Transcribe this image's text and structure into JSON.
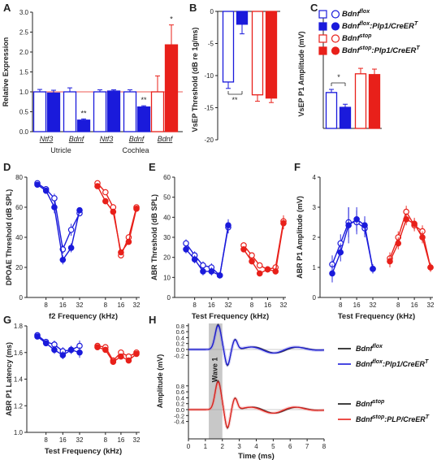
{
  "colors": {
    "blue": "#1a1adb",
    "red": "#e8201a",
    "gray": "#c8c8c8",
    "black": "#111111",
    "refline": "#e8201a"
  },
  "legend": {
    "items": [
      {
        "label": "Bdnf",
        "sup": "flox",
        "suffix": "",
        "color": "#1a1adb",
        "filled": false
      },
      {
        "label": "Bdnf",
        "sup": "flox",
        "suffix": ":Plp1/CreER",
        "suffix_sup": "T",
        "color": "#1a1adb",
        "filled": true
      },
      {
        "label": "Bdnf",
        "sup": "stop",
        "suffix": "",
        "color": "#e8201a",
        "filled": false
      },
      {
        "label": "Bdnf",
        "sup": "stop",
        "suffix": ":Plp1/CreER",
        "suffix_sup": "T",
        "color": "#e8201a",
        "filled": true
      }
    ]
  },
  "legend_h": {
    "items": [
      {
        "label": "Bdnf",
        "sup": "flox",
        "suffix": "",
        "color": "#111111"
      },
      {
        "label": "Bdnf",
        "sup": "flox",
        "suffix": ":Plp1/CreER",
        "suffix_sup": "T",
        "color": "#1a1adb"
      },
      {
        "label": "Bdnf",
        "sup": "stop",
        "suffix": "",
        "color": "#111111"
      },
      {
        "label": "Bdnf",
        "sup": "stop",
        "suffix": ":PLP/CreER",
        "suffix_sup": "T",
        "color": "#e8201a"
      }
    ]
  },
  "chart_data": [
    {
      "panel": "A",
      "type": "bar",
      "ylabel": "Relative Expression",
      "ylim": [
        0,
        3.0
      ],
      "yticks": [
        "0.0",
        "0.5",
        "1.0",
        "1.5",
        "2.0",
        "2.5",
        "3.0"
      ],
      "bars": [
        {
          "group": "Ntf3",
          "region": "Utricle",
          "color": "blue",
          "filled": false,
          "value": 1.0,
          "err": 0.06
        },
        {
          "group": "Ntf3",
          "region": "Utricle",
          "color": "blue",
          "filled": true,
          "value": 0.97,
          "err": 0.07
        },
        {
          "group": "Bdnf",
          "region": "Utricle",
          "color": "blue",
          "filled": false,
          "value": 1.0,
          "err": 0.1
        },
        {
          "group": "Bdnf",
          "region": "Utricle",
          "color": "blue",
          "filled": true,
          "value": 0.29,
          "err": 0.03,
          "sig": "**"
        },
        {
          "group": "Ntf3",
          "region": "Cochlea",
          "color": "blue",
          "filled": false,
          "value": 1.0,
          "err": 0.05
        },
        {
          "group": "Ntf3",
          "region": "Cochlea",
          "color": "blue",
          "filled": true,
          "value": 1.02,
          "err": 0.03
        },
        {
          "group": "Bdnf",
          "region": "Cochlea",
          "color": "blue",
          "filled": false,
          "value": 1.0,
          "err": 0.05
        },
        {
          "group": "Bdnf",
          "region": "Cochlea",
          "color": "blue",
          "filled": true,
          "value": 0.62,
          "err": 0.03,
          "sig": "**"
        },
        {
          "group": "Bdnf",
          "region": "Cochlea",
          "color": "red",
          "filled": false,
          "value": 1.0,
          "err": 0.4
        },
        {
          "group": "Bdnf",
          "region": "Cochlea",
          "color": "red",
          "filled": true,
          "value": 2.18,
          "err": 0.5,
          "sig": "*"
        }
      ],
      "group_labels": [
        "Ntf3",
        "Bdnf",
        "Ntf3",
        "Bdnf",
        "Bdnf"
      ],
      "region_labels": [
        "Utricle",
        "Cochlea"
      ],
      "refline": 1.0
    },
    {
      "panel": "B",
      "type": "bar",
      "ylabel": "VsEP Threshold (dB re 1g/ms)",
      "ylim": [
        -20,
        0
      ],
      "yticks": [
        "0",
        "-5",
        "-10",
        "-15",
        "-20"
      ],
      "bars": [
        {
          "color": "blue",
          "filled": false,
          "value": -11.0,
          "err": 1.0
        },
        {
          "color": "blue",
          "filled": true,
          "value": -2.0,
          "err": 1.5
        },
        {
          "color": "red",
          "filled": false,
          "value": -13.0,
          "err": 1.0
        },
        {
          "color": "red",
          "filled": true,
          "value": -13.5,
          "err": 0.7
        }
      ],
      "sig": "**"
    },
    {
      "panel": "C",
      "type": "bar",
      "ylabel": "VsEP P1 Amplitude (mV)",
      "ylim": [
        0,
        1.5
      ],
      "bars": [
        {
          "color": "blue",
          "filled": false,
          "value": 0.46,
          "err": 0.04
        },
        {
          "color": "blue",
          "filled": true,
          "value": 0.27,
          "err": 0.04
        },
        {
          "color": "red",
          "filled": false,
          "value": 0.7,
          "err": 0.07
        },
        {
          "color": "red",
          "filled": true,
          "value": 0.69,
          "err": 0.07
        }
      ],
      "sig": "*"
    },
    {
      "panel": "D",
      "type": "line",
      "ylabel": "DPOAE Threshold (dB SPL)",
      "xlabel": "f2 Frequency (kHz)",
      "ylim": [
        0,
        80
      ],
      "yticks": [
        "0",
        "20",
        "40",
        "60",
        "80"
      ],
      "xticks": [
        "8",
        "16",
        "32"
      ],
      "series": [
        {
          "color": "blue",
          "filled": false,
          "x": [
            5.6,
            8,
            11.3,
            16,
            22.6,
            32
          ],
          "y": [
            76,
            72,
            66,
            32,
            45,
            56
          ],
          "err": [
            1.5,
            2,
            3,
            3,
            4,
            2
          ]
        },
        {
          "color": "blue",
          "filled": true,
          "x": [
            5.6,
            8,
            11.3,
            16,
            22.6,
            32
          ],
          "y": [
            75,
            71,
            60,
            25,
            33,
            58
          ],
          "err": [
            1.5,
            2,
            4,
            3,
            3,
            2
          ]
        },
        {
          "color": "red",
          "filled": false,
          "x": [
            5.6,
            8,
            11.3,
            16,
            22.6,
            32
          ],
          "y": [
            76,
            70,
            60,
            28,
            40,
            60
          ],
          "err": [
            1.5,
            2,
            2,
            2,
            2,
            1.5
          ]
        },
        {
          "color": "red",
          "filled": true,
          "x": [
            5.6,
            8,
            11.3,
            16,
            22.6,
            32
          ],
          "y": [
            74,
            64,
            57,
            30,
            37,
            59
          ],
          "err": [
            1.5,
            2,
            2,
            2,
            2,
            1.5
          ]
        }
      ]
    },
    {
      "panel": "E",
      "type": "line",
      "ylabel": "ABR Threshold (dB SPL)",
      "xlabel": "Test Frequency (kHz)",
      "ylim": [
        0,
        60
      ],
      "yticks": [
        "0",
        "10",
        "20",
        "30",
        "40",
        "50",
        "60"
      ],
      "xticks": [
        "8",
        "16",
        "32"
      ],
      "series": [
        {
          "color": "blue",
          "filled": false,
          "x": [
            5.6,
            8,
            11.3,
            16,
            22.6,
            32
          ],
          "y": [
            27,
            21,
            16,
            15,
            11,
            35
          ],
          "err": [
            2,
            2,
            2,
            2,
            1.5,
            3
          ]
        },
        {
          "color": "blue",
          "filled": true,
          "x": [
            5.6,
            8,
            11.3,
            16,
            22.6,
            32
          ],
          "y": [
            24,
            19,
            13,
            13,
            11,
            36
          ],
          "err": [
            2,
            2,
            2,
            2,
            1.5,
            3
          ]
        },
        {
          "color": "red",
          "filled": false,
          "x": [
            5.6,
            8,
            11.3,
            16,
            22.6,
            32
          ],
          "y": [
            26,
            21,
            16,
            14,
            15,
            38
          ],
          "err": [
            1.5,
            1.5,
            1.5,
            1.5,
            1.5,
            3
          ]
        },
        {
          "color": "red",
          "filled": true,
          "x": [
            5.6,
            8,
            11.3,
            16,
            22.6,
            32
          ],
          "y": [
            24,
            18,
            12,
            14,
            13,
            37
          ],
          "err": [
            1.5,
            1.5,
            1.5,
            1.5,
            1.5,
            3
          ]
        }
      ]
    },
    {
      "panel": "F",
      "type": "line",
      "ylabel": "ABR P1 Amplitude (mV)",
      "xlabel": "Test Frequency (kHz)",
      "ylim": [
        0,
        4
      ],
      "yticks": [
        "0",
        "1",
        "2",
        "3",
        "4"
      ],
      "xticks": [
        "8",
        "16",
        "32"
      ],
      "series": [
        {
          "color": "blue",
          "filled": false,
          "x": [
            5.6,
            8,
            11.3,
            16,
            22.6,
            32
          ],
          "y": [
            1.1,
            1.8,
            2.5,
            2.5,
            2.3,
            0.95
          ],
          "err": [
            0.3,
            0.3,
            0.5,
            0.4,
            0.3,
            0.15
          ]
        },
        {
          "color": "blue",
          "filled": true,
          "x": [
            5.6,
            8,
            11.3,
            16,
            22.6,
            32
          ],
          "y": [
            0.8,
            1.5,
            2.4,
            2.6,
            2.4,
            0.95
          ],
          "err": [
            0.3,
            0.3,
            0.6,
            0.4,
            0.3,
            0.15
          ]
        },
        {
          "color": "red",
          "filled": false,
          "x": [
            5.6,
            8,
            11.3,
            16,
            22.6,
            32
          ],
          "y": [
            1.3,
            2.0,
            2.85,
            2.4,
            2.2,
            1.0
          ],
          "err": [
            0.2,
            0.2,
            0.2,
            0.2,
            0.2,
            0.15
          ]
        },
        {
          "color": "red",
          "filled": true,
          "x": [
            5.6,
            8,
            11.3,
            16,
            22.6,
            32
          ],
          "y": [
            1.2,
            1.8,
            2.6,
            2.45,
            2.0,
            1.0
          ],
          "err": [
            0.2,
            0.2,
            0.2,
            0.2,
            0.2,
            0.15
          ]
        }
      ]
    },
    {
      "panel": "G",
      "type": "line",
      "ylabel": "ABR P1 Latency (ms)",
      "xlabel": "Test Frequency (kHz)",
      "ylim": [
        1.0,
        1.8
      ],
      "yticks": [
        "1.0",
        "1.2",
        "1.4",
        "1.6",
        "1.8"
      ],
      "xticks": [
        "8",
        "16",
        "32"
      ],
      "series": [
        {
          "color": "blue",
          "filled": false,
          "x": [
            5.6,
            8,
            11.3,
            16,
            22.6,
            32
          ],
          "y": [
            1.73,
            1.68,
            1.66,
            1.61,
            1.62,
            1.65
          ],
          "err": [
            0.02,
            0.02,
            0.03,
            0.03,
            0.03,
            0.04
          ]
        },
        {
          "color": "blue",
          "filled": true,
          "x": [
            5.6,
            8,
            11.3,
            16,
            22.6,
            32
          ],
          "y": [
            1.72,
            1.67,
            1.62,
            1.58,
            1.62,
            1.6
          ],
          "err": [
            0.02,
            0.02,
            0.03,
            0.03,
            0.03,
            0.04
          ]
        },
        {
          "color": "red",
          "filled": false,
          "x": [
            5.6,
            8,
            11.3,
            16,
            22.6,
            32
          ],
          "y": [
            1.65,
            1.64,
            1.54,
            1.6,
            1.57,
            1.6
          ],
          "err": [
            0.02,
            0.02,
            0.02,
            0.02,
            0.02,
            0.02
          ]
        },
        {
          "color": "red",
          "filled": true,
          "x": [
            5.6,
            8,
            11.3,
            16,
            22.6,
            32
          ],
          "y": [
            1.64,
            1.62,
            1.53,
            1.57,
            1.54,
            1.59
          ],
          "err": [
            0.02,
            0.02,
            0.02,
            0.02,
            0.02,
            0.02
          ]
        }
      ]
    },
    {
      "panel": "H",
      "type": "line",
      "ylabel": "Amplitude (mV)",
      "xlabel": "Time (ms)",
      "xlim": [
        0,
        8
      ],
      "xticks": [
        "0",
        "1",
        "2",
        "3",
        "4",
        "5",
        "6",
        "7",
        "8"
      ],
      "top_yticks": [
        "0.8",
        "0.6",
        "0.4",
        "0.2",
        "0.0",
        "-0.2"
      ],
      "bottom_yticks": [
        "0.8",
        "0.6",
        "0.4",
        "0.2",
        "0.0",
        "-0.2",
        "-0.4"
      ],
      "shaded_region": [
        1.2,
        2.0
      ],
      "shaded_label": "Wave 1"
    }
  ]
}
